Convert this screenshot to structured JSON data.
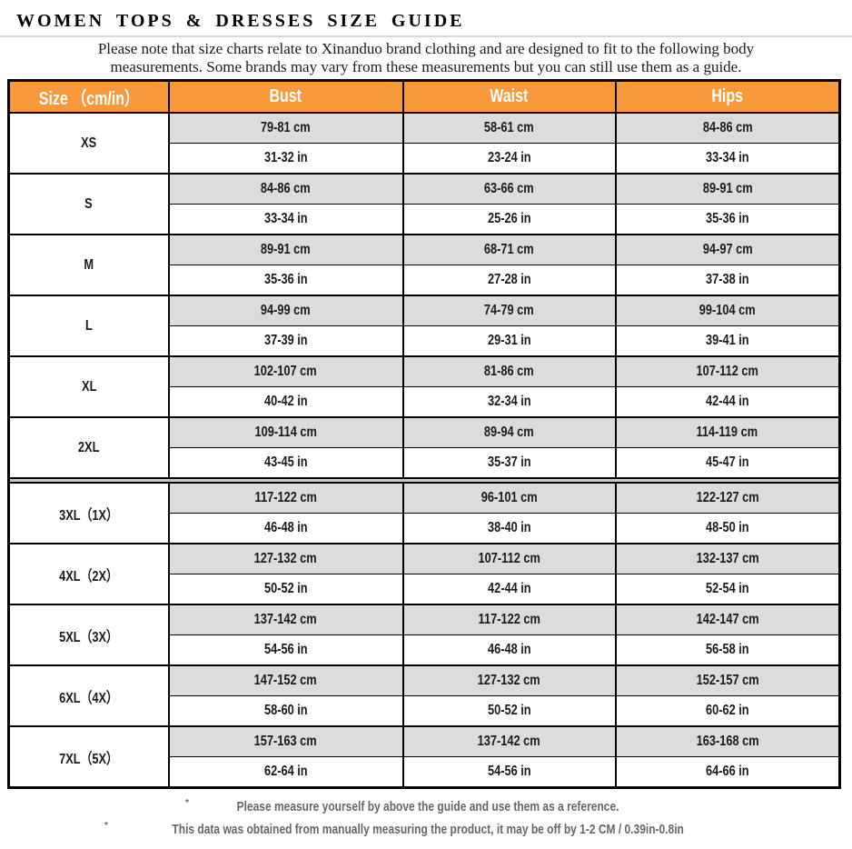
{
  "page": {
    "title": "WOMEN TOPS & DRESSES SIZE GUIDE",
    "note_line1": "Please note that size charts relate to  Xinanduo brand clothing and are designed to fit to the following body",
    "note_line2": "measurements. Some brands may vary from these measurements but you can still use them as a guide."
  },
  "colors": {
    "header_orange": "#F8993B",
    "row_gray": "#DCDCDC",
    "separator_gray": "#C8C8C8",
    "border_black": "#000000",
    "footnote_gray": "#666666",
    "rule_gray": "#D9D9D9"
  },
  "table": {
    "headers": [
      "Size （cm/in）",
      "Bust",
      "Waist",
      "Hips"
    ],
    "rows": [
      {
        "size": "XS",
        "bust_cm": "79-81 cm",
        "waist_cm": "58-61 cm",
        "hips_cm": "84-86 cm",
        "bust_in": "31-32 in",
        "waist_in": "23-24 in",
        "hips_in": "33-34 in",
        "plus_divider": false
      },
      {
        "size": "S",
        "bust_cm": "84-86 cm",
        "waist_cm": "63-66 cm",
        "hips_cm": "89-91 cm",
        "bust_in": "33-34 in",
        "waist_in": "25-26 in",
        "hips_in": "35-36 in",
        "plus_divider": false
      },
      {
        "size": "M",
        "bust_cm": "89-91 cm",
        "waist_cm": "68-71 cm",
        "hips_cm": "94-97 cm",
        "bust_in": "35-36 in",
        "waist_in": "27-28 in",
        "hips_in": "37-38 in",
        "plus_divider": false
      },
      {
        "size": "L",
        "bust_cm": "94-99 cm",
        "waist_cm": "74-79 cm",
        "hips_cm": "99-104 cm",
        "bust_in": "37-39 in",
        "waist_in": "29-31 in",
        "hips_in": "39-41 in",
        "plus_divider": false
      },
      {
        "size": "XL",
        "bust_cm": "102-107 cm",
        "waist_cm": "81-86 cm",
        "hips_cm": "107-112 cm",
        "bust_in": "40-42 in",
        "waist_in": "32-34 in",
        "hips_in": "42-44 in",
        "plus_divider": false
      },
      {
        "size": "2XL",
        "bust_cm": "109-114 cm",
        "waist_cm": "89-94 cm",
        "hips_cm": "114-119 cm",
        "bust_in": "43-45 in",
        "waist_in": "35-37 in",
        "hips_in": "45-47 in",
        "plus_divider": false
      },
      {
        "size": "3XL（1X）",
        "bust_cm": "117-122 cm",
        "waist_cm": "96-101 cm",
        "hips_cm": "122-127 cm",
        "bust_in": "46-48 in",
        "waist_in": "38-40 in",
        "hips_in": "48-50 in",
        "plus_divider": true
      },
      {
        "size": "4XL（2X）",
        "bust_cm": "127-132 cm",
        "waist_cm": "107-112 cm",
        "hips_cm": "132-137 cm",
        "bust_in": "50-52 in",
        "waist_in": "42-44 in",
        "hips_in": "52-54 in",
        "plus_divider": false
      },
      {
        "size": "5XL（3X）",
        "bust_cm": "137-142 cm",
        "waist_cm": "117-122 cm",
        "hips_cm": "142-147 cm",
        "bust_in": "54-56 in",
        "waist_in": "46-48 in",
        "hips_in": "56-58 in",
        "plus_divider": false
      },
      {
        "size": "6XL（4X）",
        "bust_cm": "147-152 cm",
        "waist_cm": "127-132 cm",
        "hips_cm": "152-157 cm",
        "bust_in": "58-60 in",
        "waist_in": "50-52 in",
        "hips_in": "60-62 in",
        "plus_divider": false
      },
      {
        "size": "7XL（5X）",
        "bust_cm": "157-163 cm",
        "waist_cm": "137-142 cm",
        "hips_cm": "163-168 cm",
        "bust_in": "62-64 in",
        "waist_in": "54-56 in",
        "hips_in": "64-66 in",
        "plus_divider": false
      }
    ]
  },
  "footnotes": [
    {
      "marker": "*",
      "text": "Please measure yourself by above the guide and use them as a reference."
    },
    {
      "marker": "*",
      "text": "This data was obtained from manually measuring the product, it may be off by 1-2 CM / 0.39in-0.8in"
    }
  ]
}
